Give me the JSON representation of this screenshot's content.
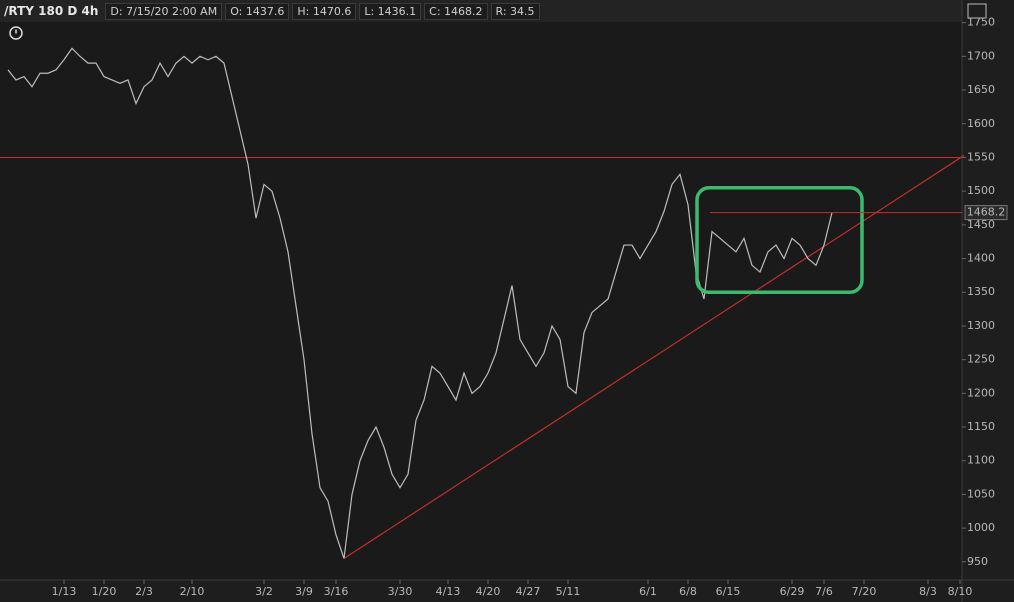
{
  "toolbar": {
    "symbol": "/RTY 180 D 4h",
    "date": "D: 7/15/20 2:00 AM",
    "open": "O: 1437.6",
    "high": "H: 1470.6",
    "low": "L: 1436.1",
    "close": "C: 1468.2",
    "range": "R: 34.5"
  },
  "chart_data": {
    "type": "line",
    "categories": [
      null,
      null,
      null,
      null,
      null,
      null,
      null,
      "1/13",
      null,
      null,
      null,
      null,
      "1/20",
      null,
      null,
      null,
      null,
      "2/3",
      null,
      null,
      null,
      null,
      null,
      "2/10",
      null,
      null,
      null,
      null,
      null,
      null,
      null,
      null,
      "3/2",
      null,
      null,
      null,
      null,
      "3/9",
      null,
      null,
      null,
      "3/16",
      null,
      null,
      null,
      null,
      null,
      null,
      null,
      "3/30",
      null,
      null,
      null,
      null,
      null,
      "4/13",
      null,
      null,
      null,
      null,
      "4/20",
      null,
      null,
      null,
      null,
      "4/27",
      null,
      null,
      null,
      null,
      "5/11",
      null,
      null,
      null,
      null,
      null,
      null,
      null,
      null,
      null,
      "6/1",
      null,
      null,
      null,
      null,
      "6/8",
      null,
      null,
      null,
      null,
      "6/15",
      null,
      null,
      null,
      null,
      null,
      null,
      null,
      "6/29",
      null,
      null,
      null,
      "7/6",
      null,
      null,
      null,
      null,
      "7/20",
      null,
      null,
      null,
      null,
      null,
      null,
      null,
      "8/3",
      null,
      null,
      null,
      "8/10"
    ],
    "series": [
      {
        "color": "#bdbdbd",
        "values": [
          1680,
          1665,
          1670,
          1655,
          1675,
          1675,
          1680,
          1695,
          1712,
          1700,
          1690,
          1690,
          1670,
          1665,
          1660,
          1665,
          1630,
          1655,
          1665,
          1690,
          1670,
          1690,
          1700,
          1690,
          1700,
          1695,
          1700,
          1690,
          1640,
          1590,
          1540,
          1460,
          1510,
          1500,
          1460,
          1410,
          1330,
          1250,
          1140,
          1060,
          1040,
          990,
          955,
          1050,
          1100,
          1130,
          1150,
          1120,
          1080,
          1060,
          1080,
          1160,
          1190,
          1240,
          1230,
          1210,
          1190,
          1230,
          1200,
          1210,
          1230,
          1260,
          1310,
          1360,
          1280,
          1260,
          1240,
          1260,
          1300,
          1280,
          1210,
          1200,
          1290,
          1320,
          1330,
          1340,
          1380,
          1420,
          1420,
          1400,
          1420,
          1440,
          1470,
          1510,
          1525,
          1480,
          1380,
          1340,
          1440,
          1430,
          1420,
          1410,
          1430,
          1390,
          1380,
          1410,
          1420,
          1400,
          1430,
          1420,
          1400,
          1390,
          1420,
          1468.2,
          null,
          null,
          null,
          null,
          null,
          null,
          null,
          null,
          null,
          null,
          null,
          null,
          null,
          null,
          null,
          null
        ]
      }
    ],
    "ylim": [
      926,
      1751
    ],
    "yticks": [
      950,
      1000,
      1050,
      1100,
      1150,
      1200,
      1250,
      1300,
      1350,
      1400,
      1450,
      1500,
      1550,
      1600,
      1650,
      1700,
      1750
    ],
    "reference_lines": [
      {
        "value": 1550,
        "color": "#c0302b"
      }
    ],
    "trendline": {
      "color": "#c0302b",
      "end_value": 1553
    },
    "highlight": {
      "color": "#3dba6e",
      "from": "6/8",
      "to": "7/20",
      "ylim": [
        1350,
        1505
      ]
    },
    "grid": false
  }
}
